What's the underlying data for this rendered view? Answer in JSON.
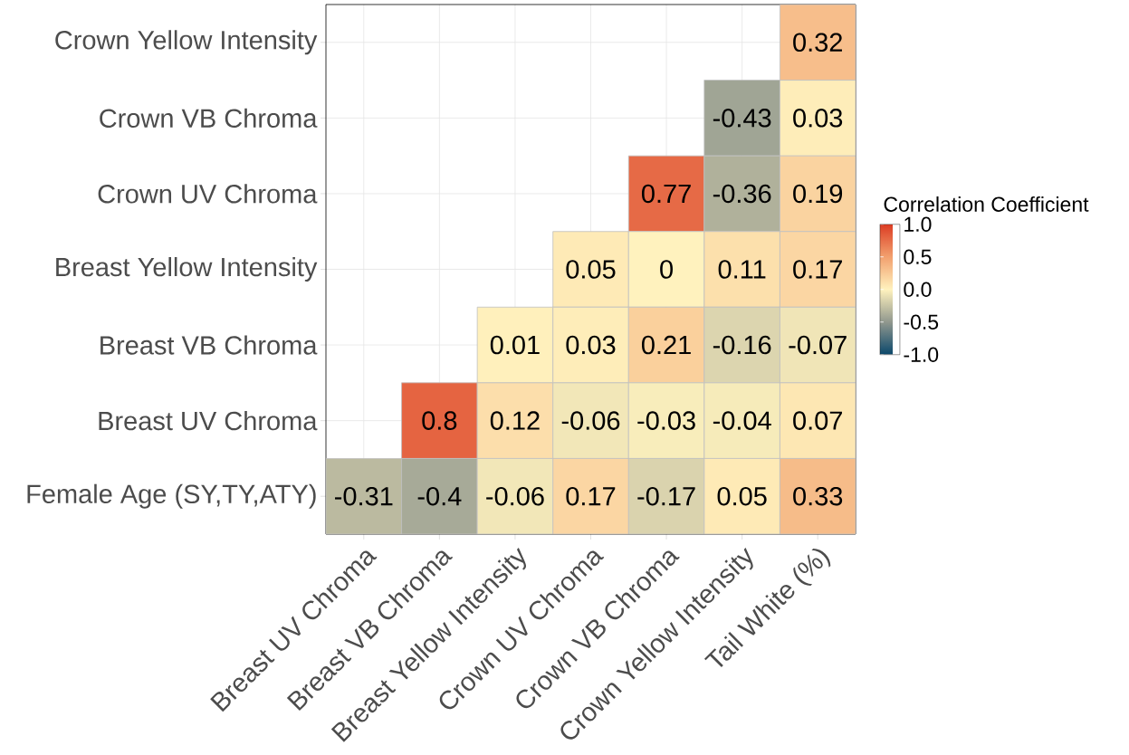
{
  "chart_data": {
    "type": "heatmap",
    "categories": [
      "Breast UV Chroma",
      "Breast VB Chroma",
      "Breast Yellow Intensity",
      "Crown UV Chroma",
      "Crown VB Chroma",
      "Crown Yellow Intensity",
      "Tail White (%)"
    ],
    "y_categories": [
      "Crown Yellow Intensity",
      "Crown VB Chroma",
      "Crown UV Chroma",
      "Breast Yellow Intensity",
      "Breast VB Chroma",
      "Breast UV Chroma",
      "Female Age (SY,TY,ATY)"
    ],
    "cells": [
      [
        null,
        null,
        null,
        null,
        null,
        null,
        0.32
      ],
      [
        null,
        null,
        null,
        null,
        null,
        -0.43,
        0.03
      ],
      [
        null,
        null,
        null,
        null,
        0.77,
        -0.36,
        0.19
      ],
      [
        null,
        null,
        null,
        0.05,
        0,
        0.11,
        0.17
      ],
      [
        null,
        null,
        0.01,
        0.03,
        0.21,
        -0.16,
        -0.07
      ],
      [
        null,
        0.8,
        0.12,
        -0.06,
        -0.03,
        -0.04,
        0.07
      ],
      [
        -0.31,
        -0.4,
        -0.06,
        0.17,
        -0.17,
        0.05,
        0.33
      ]
    ],
    "data_labels": true,
    "clabel": "Correlation Coefficient",
    "clim": [
      -1,
      1
    ],
    "cticks": [
      {
        "value": -1,
        "label": "-1.0"
      },
      {
        "value": -0.5,
        "label": "-0.5"
      },
      {
        "value": 0,
        "label": "0.0"
      },
      {
        "value": 0.5,
        "label": "0.5"
      },
      {
        "value": 1,
        "label": "1.0"
      }
    ],
    "grid": true
  }
}
